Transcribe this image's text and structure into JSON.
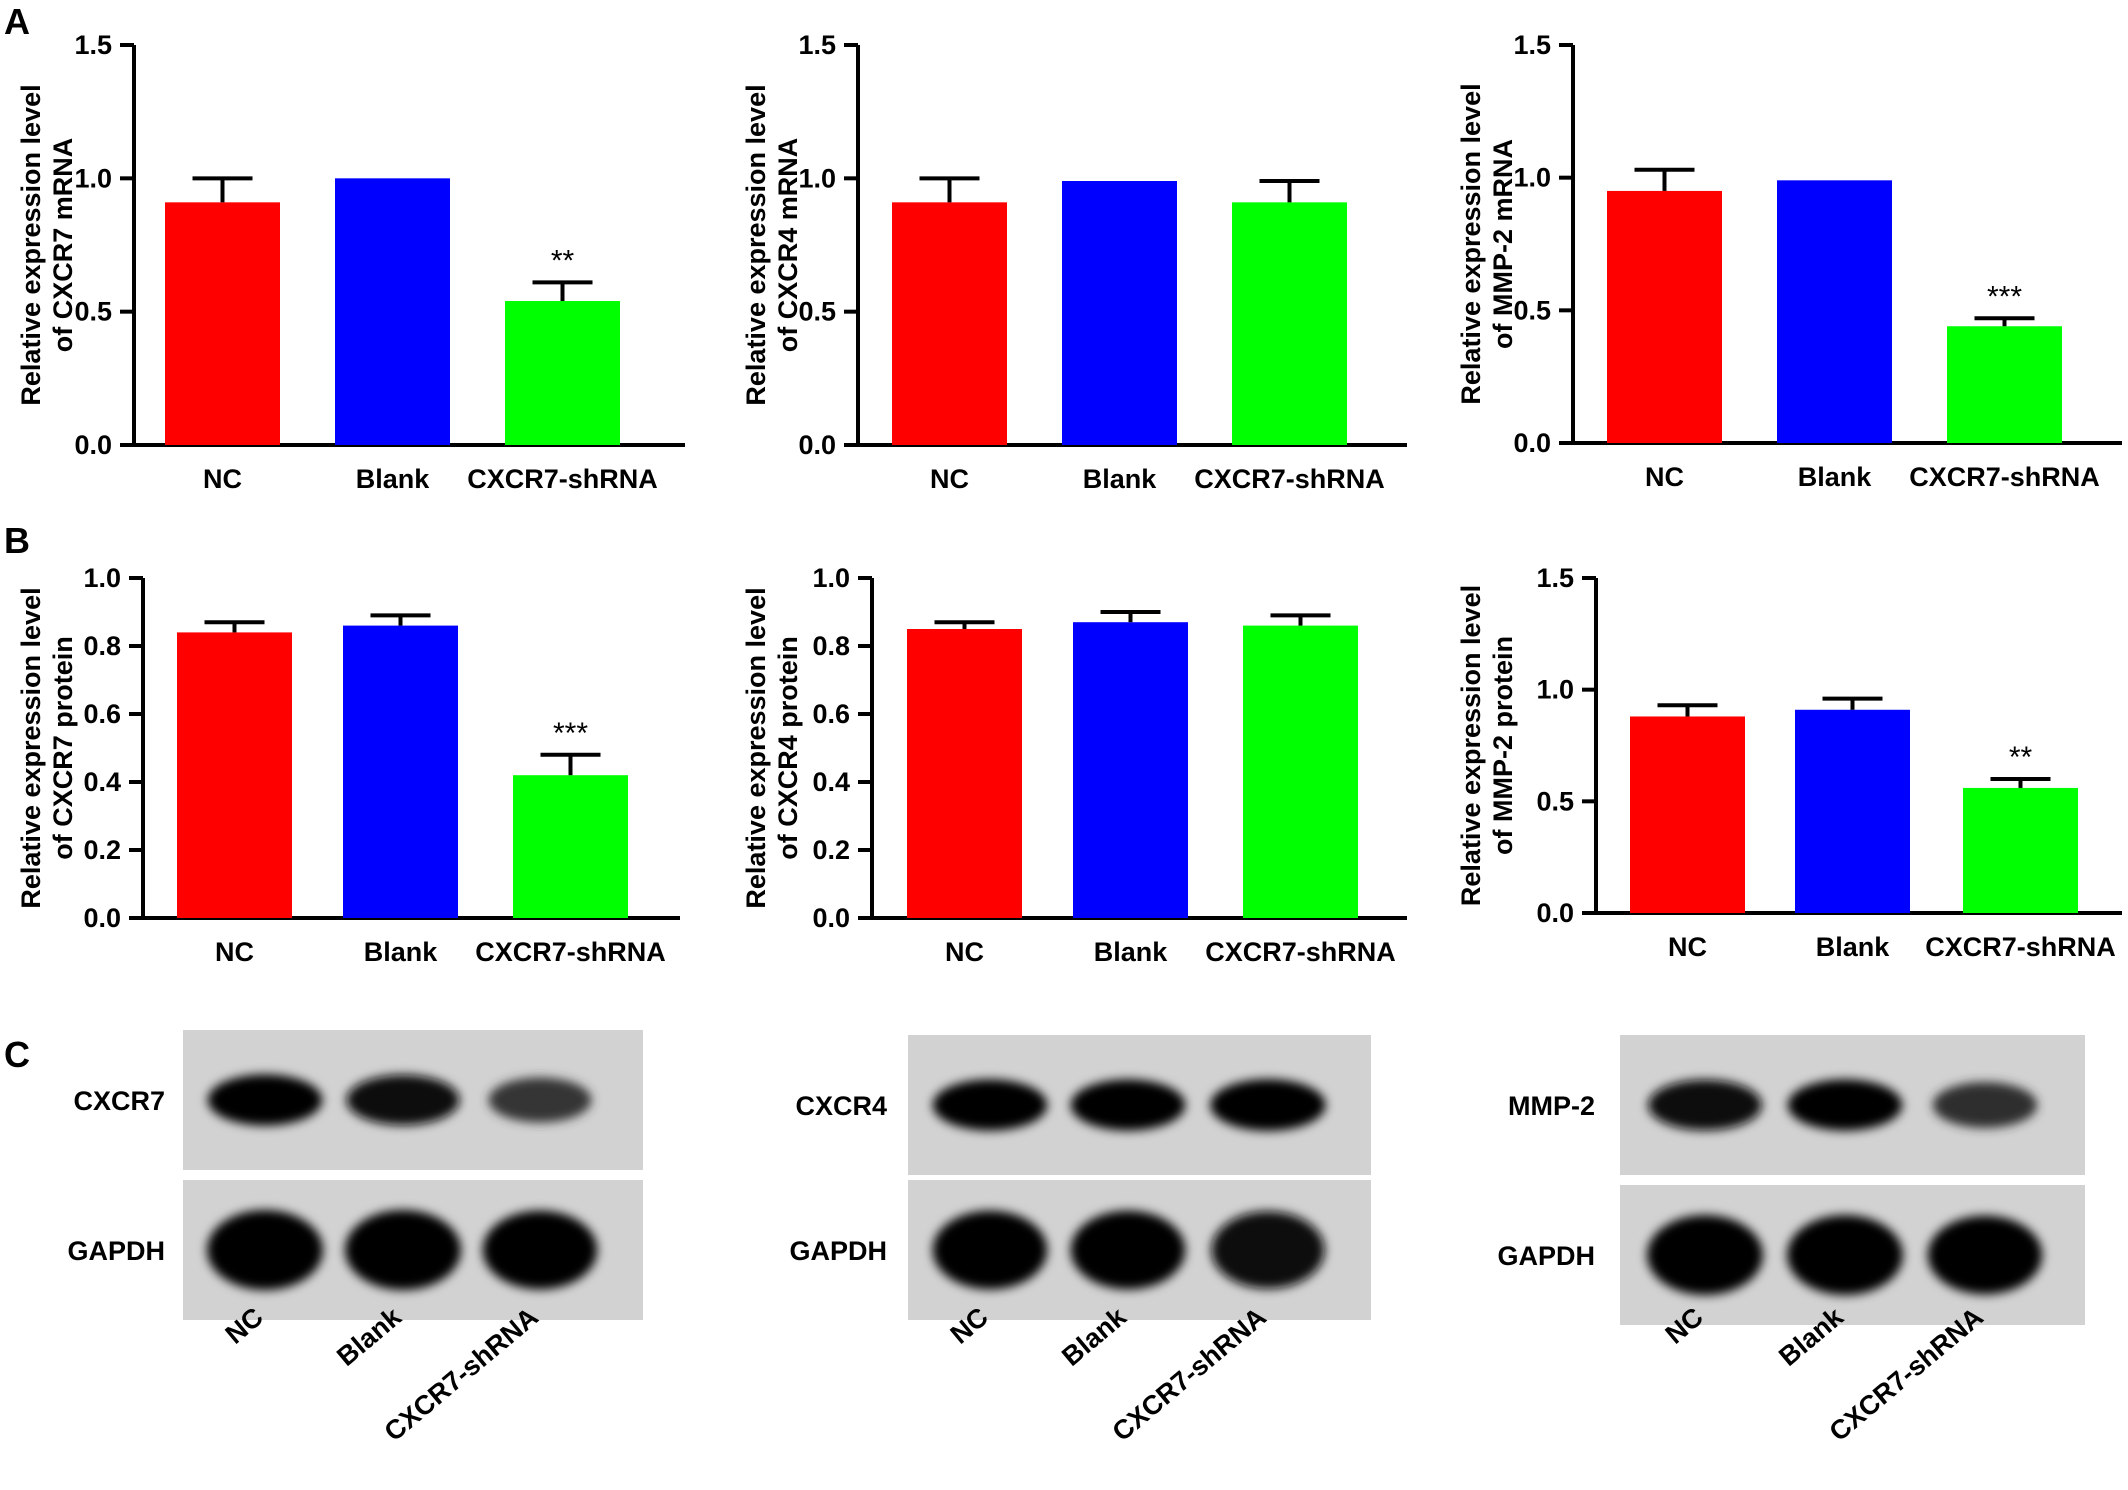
{
  "panel_letters": {
    "a": "A",
    "b": "B",
    "c": "C"
  },
  "colors": {
    "NC": "#ff0000",
    "Blank": "#0000ff",
    "CXCR7-shRNA": "#00ff00",
    "axis": "#000000"
  },
  "chart_data": [
    {
      "type": "bar",
      "panel": "A",
      "categories": [
        "NC",
        "Blank",
        "CXCR7-shRNA"
      ],
      "values": [
        0.91,
        1.0,
        0.54
      ],
      "errors": [
        0.09,
        0.0,
        0.07
      ],
      "significance": [
        "",
        "",
        "**"
      ],
      "ylabel": [
        "Relative expression level",
        "of CXCR7 mRNA"
      ],
      "ylim": [
        0,
        1.5
      ],
      "yticks": [
        0.0,
        0.5,
        1.0,
        1.5
      ],
      "ytick_labels": [
        "0.0",
        "0.5",
        "1.0",
        "1.5"
      ]
    },
    {
      "type": "bar",
      "panel": "A",
      "categories": [
        "NC",
        "Blank",
        "CXCR7-shRNA"
      ],
      "values": [
        0.91,
        0.99,
        0.91
      ],
      "errors": [
        0.09,
        0.0,
        0.08
      ],
      "significance": [
        "",
        "",
        ""
      ],
      "ylabel": [
        "Relative expression level",
        "of CXCR4 mRNA"
      ],
      "ylim": [
        0,
        1.5
      ],
      "yticks": [
        0.0,
        0.5,
        1.0,
        1.5
      ],
      "ytick_labels": [
        "0.0",
        "0.5",
        "1.0",
        "1.5"
      ]
    },
    {
      "type": "bar",
      "panel": "A",
      "categories": [
        "NC",
        "Blank",
        "CXCR7-shRNA"
      ],
      "values": [
        0.95,
        0.99,
        0.44
      ],
      "errors": [
        0.08,
        0.0,
        0.03
      ],
      "significance": [
        "",
        "",
        "***"
      ],
      "ylabel": [
        "Relative expression level",
        "of MMP-2 mRNA"
      ],
      "ylim": [
        0,
        1.5
      ],
      "yticks": [
        0.0,
        0.5,
        1.0,
        1.5
      ],
      "ytick_labels": [
        "0.0",
        "0.5",
        "1.0",
        "1.5"
      ]
    },
    {
      "type": "bar",
      "panel": "B",
      "categories": [
        "NC",
        "Blank",
        "CXCR7-shRNA"
      ],
      "values": [
        0.84,
        0.86,
        0.42
      ],
      "errors": [
        0.03,
        0.03,
        0.06
      ],
      "significance": [
        "",
        "",
        "***"
      ],
      "ylabel": [
        "Relative expression level",
        "of CXCR7 protein"
      ],
      "ylim": [
        0,
        1.0
      ],
      "yticks": [
        0.0,
        0.2,
        0.4,
        0.6,
        0.8,
        1.0
      ],
      "ytick_labels": [
        "0.0",
        "0.2",
        "0.4",
        "0.6",
        "0.8",
        "1.0"
      ]
    },
    {
      "type": "bar",
      "panel": "B",
      "categories": [
        "NC",
        "Blank",
        "CXCR7-shRNA"
      ],
      "values": [
        0.85,
        0.87,
        0.86
      ],
      "errors": [
        0.02,
        0.03,
        0.03
      ],
      "significance": [
        "",
        "",
        ""
      ],
      "ylabel": [
        "Relative expression level",
        "of CXCR4 protein"
      ],
      "ylim": [
        0,
        1.0
      ],
      "yticks": [
        0.0,
        0.2,
        0.4,
        0.6,
        0.8,
        1.0
      ],
      "ytick_labels": [
        "0.0",
        "0.2",
        "0.4",
        "0.6",
        "0.8",
        "1.0"
      ]
    },
    {
      "type": "bar",
      "panel": "B",
      "categories": [
        "NC",
        "Blank",
        "CXCR7-shRNA"
      ],
      "values": [
        0.88,
        0.91,
        0.56
      ],
      "errors": [
        0.05,
        0.05,
        0.04
      ],
      "significance": [
        "",
        "",
        "**"
      ],
      "ylabel": [
        "Relative expression level",
        "of MMP-2 protein"
      ],
      "ylim": [
        0,
        1.5
      ],
      "yticks": [
        0.0,
        0.5,
        1.0,
        1.5
      ],
      "ytick_labels": [
        "0.0",
        "0.5",
        "1.0",
        "1.5"
      ]
    }
  ],
  "blots": [
    {
      "target": "CXCR7",
      "loading": "GAPDH",
      "lanes": [
        "NC",
        "Blank",
        "CXCR7-shRNA"
      ],
      "target_intensity": [
        0.95,
        0.9,
        0.55
      ],
      "loading_intensity": [
        1.0,
        1.0,
        0.95
      ]
    },
    {
      "target": "CXCR4",
      "loading": "GAPDH",
      "lanes": [
        "NC",
        "Blank",
        "CXCR7-shRNA"
      ],
      "target_intensity": [
        0.95,
        0.95,
        0.98
      ],
      "loading_intensity": [
        0.95,
        0.95,
        0.9
      ]
    },
    {
      "target": "MMP-2",
      "loading": "GAPDH",
      "lanes": [
        "NC",
        "Blank",
        "CXCR7-shRNA"
      ],
      "target_intensity": [
        0.92,
        0.95,
        0.6
      ],
      "loading_intensity": [
        1.0,
        1.0,
        0.95
      ]
    }
  ]
}
